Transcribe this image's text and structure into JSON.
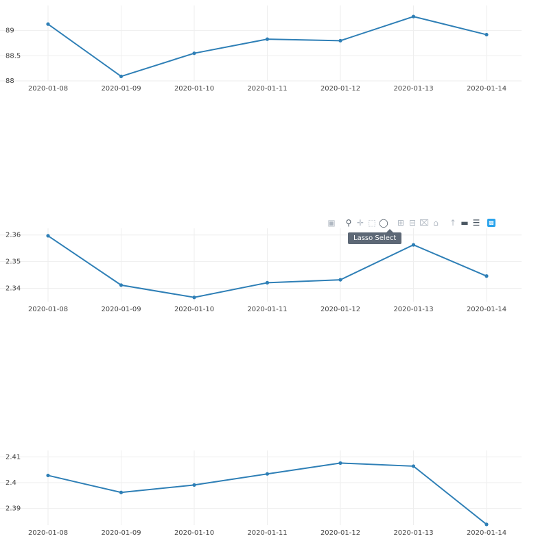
{
  "chart_data": [
    {
      "type": "line",
      "title": "",
      "x": [
        "2020-01-08",
        "2020-01-09",
        "2020-01-10",
        "2020-01-11",
        "2020-01-12",
        "2020-01-13",
        "2020-01-14"
      ],
      "series": [
        {
          "values": [
            89.13,
            88.09,
            88.55,
            88.83,
            88.8,
            89.28,
            88.92
          ]
        }
      ],
      "yticks": [
        "88",
        "88.5",
        "89"
      ],
      "ylim": [
        88,
        89.5
      ],
      "grid": true,
      "color": "#2e7fb6"
    },
    {
      "type": "line",
      "title": "",
      "x": [
        "2020-01-08",
        "2020-01-09",
        "2020-01-10",
        "2020-01-11",
        "2020-01-12",
        "2020-01-13",
        "2020-01-14"
      ],
      "series": [
        {
          "values": [
            2.3597,
            2.3412,
            2.3366,
            2.3421,
            2.3432,
            2.3563,
            2.3446
          ]
        }
      ],
      "yticks": [
        "2.34",
        "2.35",
        "2.36"
      ],
      "ylim": [
        2.335,
        2.3625
      ],
      "grid": true,
      "color": "#2e7fb6"
    },
    {
      "type": "line",
      "title": "",
      "x": [
        "2020-01-08",
        "2020-01-09",
        "2020-01-10",
        "2020-01-11",
        "2020-01-12",
        "2020-01-13",
        "2020-01-14"
      ],
      "series": [
        {
          "values": [
            2.4028,
            2.3962,
            2.3991,
            2.4034,
            2.4076,
            2.4064,
            2.3838
          ]
        }
      ],
      "yticks": [
        "2.39",
        "2.4",
        "2.41"
      ],
      "ylim": [
        2.3835,
        2.4125
      ],
      "grid": true,
      "color": "#2e7fb6"
    }
  ],
  "modebar": {
    "tooltip": "Lasso Select",
    "icons": [
      "camera-icon",
      "zoom-icon",
      "pan-icon",
      "box-select-icon",
      "lasso-select-icon",
      "zoom-in-icon",
      "zoom-out-icon",
      "autoscale-icon",
      "reset-axes-icon",
      "spike-lines-icon",
      "hover-closest-icon",
      "hover-compare-icon",
      "plotly-logo-icon"
    ]
  }
}
